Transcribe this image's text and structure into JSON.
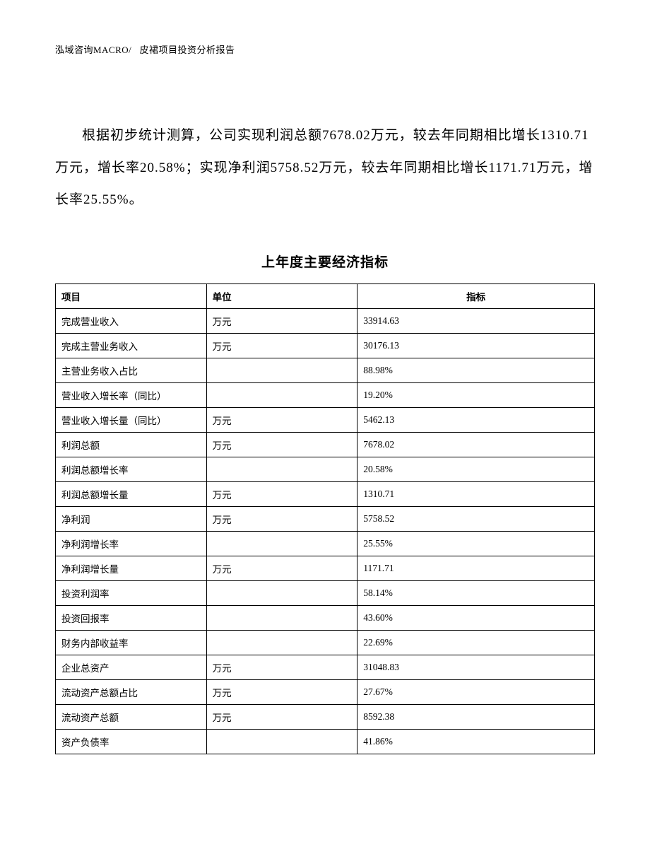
{
  "header": {
    "company": "泓域咨询MACRO/",
    "report_title": "皮裙项目投资分析报告"
  },
  "paragraph": "根据初步统计测算，公司实现利润总额7678.02万元，较去年同期相比增长1310.71万元，增长率20.58%；实现净利润5758.52万元，较去年同期相比增长1171.71万元，增长率25.55%。",
  "table": {
    "title": "上年度主要经济指标",
    "columns": [
      "项目",
      "单位",
      "指标"
    ],
    "rows": [
      [
        "完成营业收入",
        "万元",
        "33914.63"
      ],
      [
        "完成主营业务收入",
        "万元",
        "30176.13"
      ],
      [
        "主营业务收入占比",
        "",
        "88.98%"
      ],
      [
        "营业收入增长率（同比）",
        "",
        "19.20%"
      ],
      [
        "营业收入增长量（同比）",
        "万元",
        "5462.13"
      ],
      [
        "利润总额",
        "万元",
        "7678.02"
      ],
      [
        "利润总额增长率",
        "",
        "20.58%"
      ],
      [
        "利润总额增长量",
        "万元",
        "1310.71"
      ],
      [
        "净利润",
        "万元",
        "5758.52"
      ],
      [
        "净利润增长率",
        "",
        "25.55%"
      ],
      [
        "净利润增长量",
        "万元",
        "1171.71"
      ],
      [
        "投资利润率",
        "",
        "58.14%"
      ],
      [
        "投资回报率",
        "",
        "43.60%"
      ],
      [
        "财务内部收益率",
        "",
        "22.69%"
      ],
      [
        "企业总资产",
        "万元",
        "31048.83"
      ],
      [
        "流动资产总额占比",
        "万元",
        "27.67%"
      ],
      [
        "流动资产总额",
        "万元",
        "8592.38"
      ],
      [
        "资产负债率",
        "",
        "41.86%"
      ]
    ]
  }
}
